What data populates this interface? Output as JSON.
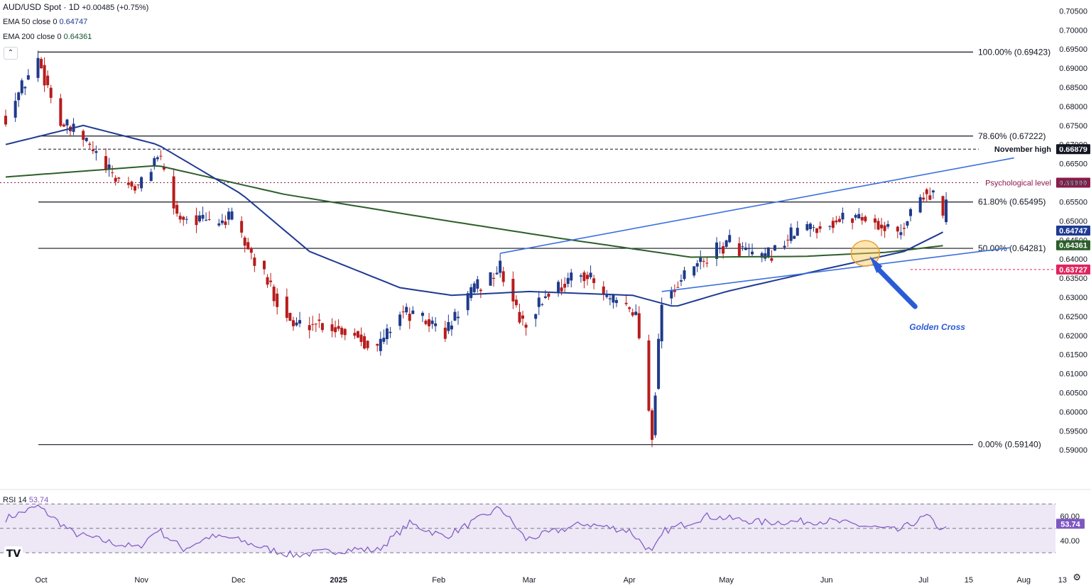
{
  "header": {
    "symbol": "AUD/USD Spot · 1D",
    "change": "+0.00485 (+0.75%)",
    "ema50_label": "EMA 50 close 0",
    "ema50_value": "0.64747",
    "ema200_label": "EMA 200 close 0",
    "ema200_value": "0.64361"
  },
  "rsi_header": {
    "label": "RSI 14",
    "value": "53.74"
  },
  "icons": {
    "collapse": "chevron-up-icon",
    "logo": "tradingview-logo",
    "settings": "gear-icon"
  },
  "colors": {
    "up": "#1e3a8a",
    "down": "#b71c1c",
    "ema50": "#1f3a93",
    "ema200": "#2d5f2b",
    "trend": "#3b6fe0",
    "annotation": "#2a5bd7",
    "psych": "#8b1a4a",
    "low_marker": "#e0245e",
    "rsi": "#7e57c2",
    "rsi_band": "#ede7f6"
  },
  "chart_data": [
    {
      "type": "candlestick",
      "title": "AUD/USD Spot · 1D",
      "x_axis_labels": [
        "Oct",
        "Nov",
        "Dec",
        "2025",
        "Feb",
        "Mar",
        "Apr",
        "May",
        "Jun",
        "Jul",
        "15",
        "Aug",
        "13"
      ],
      "y_ticks": [
        "0.70500",
        "0.70000",
        "0.69500",
        "0.69000",
        "0.68500",
        "0.68000",
        "0.67500",
        "0.67000",
        "0.66500",
        "0.66000",
        "0.65500",
        "0.65000",
        "0.64500",
        "0.64000",
        "0.63500",
        "0.63000",
        "0.62500",
        "0.62000",
        "0.61500",
        "0.61000",
        "0.60500",
        "0.60000",
        "0.59500",
        "0.59000"
      ],
      "ylim": [
        0.588,
        0.706
      ],
      "grid": false,
      "anchors": [
        {
          "x": "2024-09-20",
          "y": 0.6775
        },
        {
          "x": "2024-09-30",
          "y": 0.6925
        },
        {
          "x": "2024-10-07",
          "y": 0.6755
        },
        {
          "x": "2024-10-14",
          "y": 0.6715
        },
        {
          "x": "2024-10-23",
          "y": 0.6615
        },
        {
          "x": "2024-10-31",
          "y": 0.6585
        },
        {
          "x": "2024-11-06",
          "y": 0.6675
        },
        {
          "x": "2024-11-12",
          "y": 0.6515
        },
        {
          "x": "2024-11-22",
          "y": 0.6495
        },
        {
          "x": "2024-11-29",
          "y": 0.6505
        },
        {
          "x": "2024-12-06",
          "y": 0.6395
        },
        {
          "x": "2024-12-18",
          "y": 0.6225
        },
        {
          "x": "2024-12-25",
          "y": 0.6235
        },
        {
          "x": "2025-01-06",
          "y": 0.6205
        },
        {
          "x": "2025-01-13",
          "y": 0.6165
        },
        {
          "x": "2025-01-20",
          "y": 0.6265
        },
        {
          "x": "2025-01-31",
          "y": 0.6225
        },
        {
          "x": "2025-02-03",
          "y": 0.6205
        },
        {
          "x": "2025-02-10",
          "y": 0.6305
        },
        {
          "x": "2025-02-20",
          "y": 0.6375
        },
        {
          "x": "2025-02-27",
          "y": 0.6225
        },
        {
          "x": "2025-03-07",
          "y": 0.6315
        },
        {
          "x": "2025-03-18",
          "y": 0.6365
        },
        {
          "x": "2025-03-25",
          "y": 0.6295
        },
        {
          "x": "2025-04-03",
          "y": 0.6255
        },
        {
          "x": "2025-04-08",
          "y": 0.5945
        },
        {
          "x": "2025-04-11",
          "y": 0.6295
        },
        {
          "x": "2025-04-22",
          "y": 0.6385
        },
        {
          "x": "2025-05-02",
          "y": 0.6445
        },
        {
          "x": "2025-05-12",
          "y": 0.6395
        },
        {
          "x": "2025-05-23",
          "y": 0.6475
        },
        {
          "x": "2025-06-02",
          "y": 0.6495
        },
        {
          "x": "2025-06-11",
          "y": 0.6515
        },
        {
          "x": "2025-06-23",
          "y": 0.6465
        },
        {
          "x": "2025-07-01",
          "y": 0.6575
        },
        {
          "x": "2025-07-04",
          "y": 0.6565
        },
        {
          "x": "2025-07-07",
          "y": 0.6502
        },
        {
          "x": "2025-07-08",
          "y": 0.655
        }
      ],
      "ema_50": [
        {
          "x": "2024-09-20",
          "y": 0.67
        },
        {
          "x": "2024-10-14",
          "y": 0.675
        },
        {
          "x": "2024-11-06",
          "y": 0.67
        },
        {
          "x": "2024-12-02",
          "y": 0.657
        },
        {
          "x": "2024-12-23",
          "y": 0.642
        },
        {
          "x": "2025-01-20",
          "y": 0.6325
        },
        {
          "x": "2025-02-05",
          "y": 0.6305
        },
        {
          "x": "2025-03-01",
          "y": 0.6315
        },
        {
          "x": "2025-04-02",
          "y": 0.6305
        },
        {
          "x": "2025-04-15",
          "y": 0.6275
        },
        {
          "x": "2025-05-01",
          "y": 0.6315
        },
        {
          "x": "2025-06-01",
          "y": 0.6375
        },
        {
          "x": "2025-06-25",
          "y": 0.642
        },
        {
          "x": "2025-07-08",
          "y": 0.64747
        }
      ],
      "ema_200": [
        {
          "x": "2024-09-20",
          "y": 0.6615
        },
        {
          "x": "2024-11-06",
          "y": 0.6645
        },
        {
          "x": "2024-12-15",
          "y": 0.657
        },
        {
          "x": "2025-01-31",
          "y": 0.6505
        },
        {
          "x": "2025-03-10",
          "y": 0.6455
        },
        {
          "x": "2025-04-20",
          "y": 0.6405
        },
        {
          "x": "2025-05-25",
          "y": 0.6407
        },
        {
          "x": "2025-06-20",
          "y": 0.6418
        },
        {
          "x": "2025-07-08",
          "y": 0.64361
        }
      ],
      "fib_levels": [
        {
          "label": "100.00% (0.69423)",
          "y": 0.69423
        },
        {
          "label": "78.60% (0.67222)",
          "y": 0.67222
        },
        {
          "label": "61.80% (0.65495)",
          "y": 0.65495
        },
        {
          "label": "50.00% (0.64281)",
          "y": 0.64281
        },
        {
          "label": "0.00% (0.59140)",
          "y": 0.5914
        }
      ],
      "reference_levels": [
        {
          "label": "November high",
          "value_label": "0.66879",
          "y": 0.66879,
          "style": "dashed"
        },
        {
          "label": "Psychological level",
          "value_label": "0.66000",
          "y": 0.66,
          "style": "dotted"
        }
      ],
      "price_tags": [
        {
          "value_label": "0.64747",
          "y": 0.64747,
          "color": "#1f3a93"
        },
        {
          "value_label": "0.64361",
          "y": 0.64361,
          "color": "#2d5f2b"
        },
        {
          "value_label": "0.63727",
          "y": 0.63727,
          "color": "#e0245e"
        }
      ],
      "trendlines": [
        {
          "from": {
            "x": "2025-02-20",
            "y": 0.6415
          },
          "to": {
            "x": "2025-07-29",
            "y": 0.6665
          }
        },
        {
          "from": {
            "x": "2025-04-11",
            "y": 0.6315
          },
          "to": {
            "x": "2025-07-28",
            "y": 0.643
          }
        }
      ],
      "annotation": {
        "text": "Golden Cross",
        "at": {
          "x": "2025-06-13",
          "y": 0.6415
        }
      }
    },
    {
      "type": "line",
      "title": "RSI 14",
      "ylim": [
        26,
        76
      ],
      "y_ticks": [
        "60.00",
        "40.00"
      ],
      "band": [
        30,
        70
      ],
      "midline": 50,
      "last_value_label": "53.74",
      "anchors": [
        {
          "x": "2024-09-20",
          "y": 58
        },
        {
          "x": "2024-09-30",
          "y": 68
        },
        {
          "x": "2024-10-11",
          "y": 46
        },
        {
          "x": "2024-10-23",
          "y": 38
        },
        {
          "x": "2024-10-31",
          "y": 34
        },
        {
          "x": "2024-11-06",
          "y": 49
        },
        {
          "x": "2024-11-14",
          "y": 33
        },
        {
          "x": "2024-11-22",
          "y": 43
        },
        {
          "x": "2024-11-29",
          "y": 42
        },
        {
          "x": "2024-12-10",
          "y": 33
        },
        {
          "x": "2024-12-18",
          "y": 28
        },
        {
          "x": "2025-01-06",
          "y": 33
        },
        {
          "x": "2025-01-13",
          "y": 32
        },
        {
          "x": "2025-01-23",
          "y": 54
        },
        {
          "x": "2025-02-03",
          "y": 43
        },
        {
          "x": "2025-02-20",
          "y": 67
        },
        {
          "x": "2025-02-28",
          "y": 41
        },
        {
          "x": "2025-03-18",
          "y": 54
        },
        {
          "x": "2025-04-01",
          "y": 48
        },
        {
          "x": "2025-04-08",
          "y": 30
        },
        {
          "x": "2025-04-12",
          "y": 48
        },
        {
          "x": "2025-04-25",
          "y": 60
        },
        {
          "x": "2025-05-12",
          "y": 55
        },
        {
          "x": "2025-06-02",
          "y": 56
        },
        {
          "x": "2025-06-23",
          "y": 48
        },
        {
          "x": "2025-07-02",
          "y": 60
        },
        {
          "x": "2025-07-07",
          "y": 48
        },
        {
          "x": "2025-07-08",
          "y": 53.74
        }
      ]
    }
  ]
}
